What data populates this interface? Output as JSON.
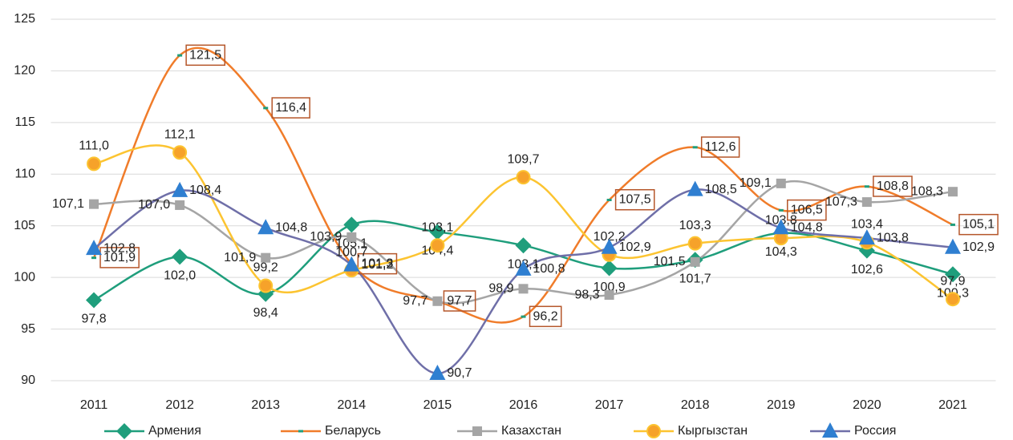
{
  "chart_data": {
    "type": "line",
    "categories": [
      "2011",
      "2012",
      "2013",
      "2014",
      "2015",
      "2016",
      "2017",
      "2018",
      "2019",
      "2020",
      "2021"
    ],
    "ylim": [
      90,
      125
    ],
    "yticks": [
      90,
      95,
      100,
      105,
      110,
      115,
      120,
      125
    ],
    "grid": true,
    "legend": "bottom",
    "smooth": true,
    "series": [
      {
        "name": "Армения",
        "color": "#1f9e7c",
        "values": [
          97.8,
          102.0,
          98.4,
          105.1,
          104.4,
          103.1,
          100.9,
          101.7,
          104.3,
          102.6,
          100.3
        ],
        "value_labels": [
          "97,8",
          "102,0",
          "98,4",
          "105,1",
          "104,4",
          "103,1",
          "100,9",
          "101,7",
          "104,3",
          "102,6",
          "100,3"
        ]
      },
      {
        "name": "Беларусь",
        "color": "#f07c2a",
        "values": [
          101.9,
          121.5,
          116.4,
          101.3,
          97.7,
          96.2,
          107.5,
          112.6,
          106.5,
          108.8,
          105.1
        ],
        "value_labels": [
          "101,9",
          "121,5",
          "116,4",
          "101,3",
          "97,7",
          "96,2",
          "107,5",
          "112,6",
          "106,5",
          "108,8",
          "105,1"
        ]
      },
      {
        "name": "Казахстан",
        "color": "#a5a5a5",
        "values": [
          107.1,
          107.0,
          101.9,
          103.9,
          97.7,
          98.9,
          98.3,
          101.5,
          109.1,
          107.3,
          108.3
        ],
        "value_labels": [
          "107,1",
          "107,0",
          "101,9",
          "103,9",
          "97,7",
          "98,9",
          "98,3",
          "101,5",
          "109,1",
          "107,3",
          "108,3"
        ]
      },
      {
        "name": "Кыргызстан",
        "color": "#fcc431",
        "values": [
          111.0,
          112.1,
          99.2,
          100.7,
          103.1,
          109.7,
          102.2,
          103.3,
          103.8,
          103.4,
          97.9
        ],
        "value_labels": [
          "111,0",
          "112,1",
          "99,2",
          "100,7",
          "103,1",
          "109,7",
          "102,2",
          "103,3",
          "103,8",
          "103,4",
          "97,9"
        ]
      },
      {
        "name": "Россия",
        "color": "#6f6fa8",
        "values": [
          102.8,
          108.4,
          104.8,
          101.2,
          90.7,
          100.8,
          102.9,
          108.5,
          104.8,
          103.8,
          102.9
        ],
        "value_labels": [
          "102,8",
          "108,4",
          "104,8",
          "101,2",
          "90,7",
          "100,8",
          "102,9",
          "108,5",
          "104,8",
          "103,8",
          "102,9"
        ]
      }
    ]
  }
}
